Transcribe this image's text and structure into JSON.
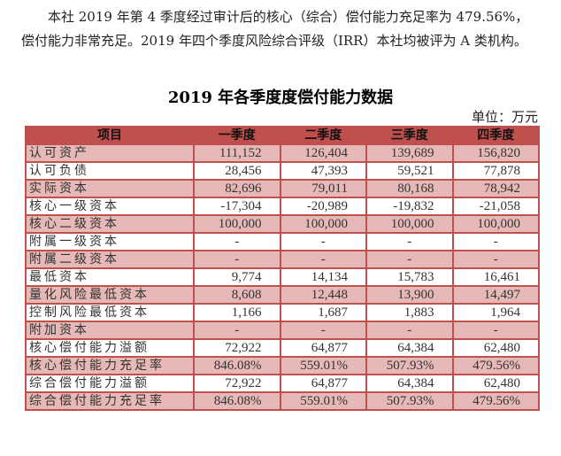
{
  "intro": {
    "line1": "本社 2019 年第 4 季度经过审计后的核心（综合）偿付能力充足率为 479.56%，",
    "line2": "偿付能力非常充足。2019 年四个季度风险综合评级（IRR）本社均被评为 A 类机构。"
  },
  "table": {
    "title": "2019 年各季度度偿付能力数据",
    "unit": "单位：万元",
    "headers": [
      "项目",
      "一季度",
      "二季度",
      "三季度",
      "四季度"
    ],
    "header_color": "#c0504d",
    "alt_row_color": "#e6b8b7",
    "rows": [
      {
        "label": "认可资产",
        "values": [
          "111,152",
          "126,404",
          "139,689",
          "156,820"
        ]
      },
      {
        "label": "认可负债",
        "values": [
          "28,456",
          "47,393",
          "59,521",
          "77,878"
        ]
      },
      {
        "label": "实际资本",
        "values": [
          "82,696",
          "79,011",
          "80,168",
          "78,942"
        ]
      },
      {
        "label": "核心一级资本",
        "values": [
          "-17,304",
          "-20,989",
          "-19,832",
          "-21,058"
        ]
      },
      {
        "label": "核心二级资本",
        "values": [
          "100,000",
          "100,000",
          "100,000",
          "100,000"
        ]
      },
      {
        "label": "附属一级资本",
        "values": [
          "-",
          "-",
          "-",
          "-"
        ]
      },
      {
        "label": "附属二级资本",
        "values": [
          "-",
          "-",
          "-",
          "-"
        ]
      },
      {
        "label": "最低资本",
        "values": [
          "9,774",
          "14,134",
          "15,783",
          "16,461"
        ]
      },
      {
        "label": "量化风险最低资本",
        "values": [
          "8,608",
          "12,448",
          "13,900",
          "14,497"
        ]
      },
      {
        "label": "控制风险最低资本",
        "values": [
          "1,166",
          "1,687",
          "1,883",
          "1,964"
        ]
      },
      {
        "label": "附加资本",
        "values": [
          "-",
          "-",
          "-",
          "-"
        ]
      },
      {
        "label": "核心偿付能力溢额",
        "values": [
          "72,922",
          "64,877",
          "64,384",
          "62,480"
        ]
      },
      {
        "label": "核心偿付能力充足率",
        "values": [
          "846.08%",
          "559.01%",
          "507.93%",
          "479.56%"
        ]
      },
      {
        "label": "综合偿付能力溢额",
        "values": [
          "72,922",
          "64,877",
          "64,384",
          "62,480"
        ]
      },
      {
        "label": "综合偿付能力充足率",
        "values": [
          "846.08%",
          "559.01%",
          "507.93%",
          "479.56%"
        ]
      }
    ]
  }
}
